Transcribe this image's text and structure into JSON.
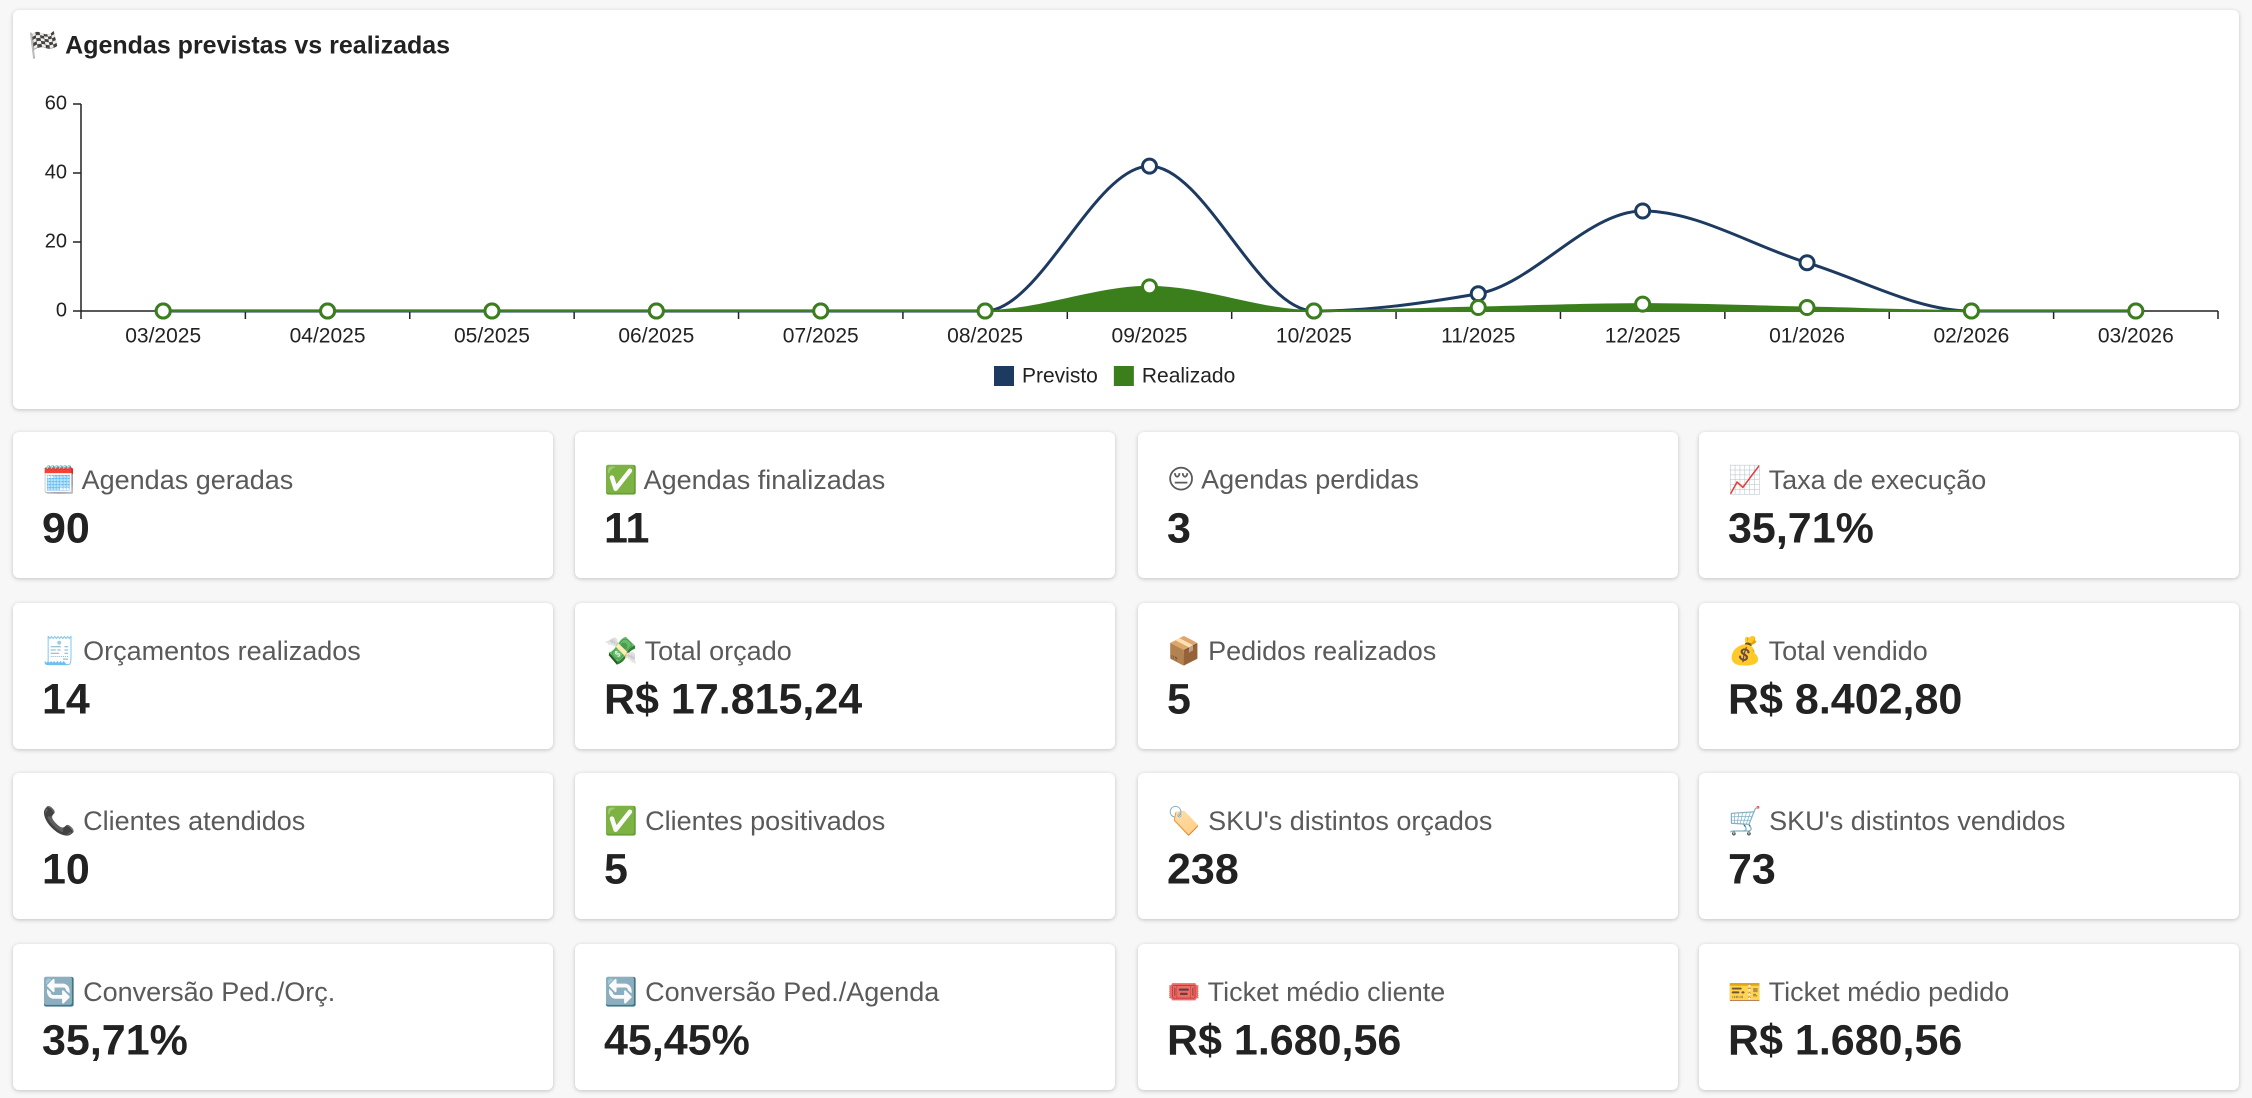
{
  "chart_data": {
    "type": "line",
    "title": "🏁 Agendas previstas vs realizadas",
    "categories": [
      "03/2025",
      "04/2025",
      "05/2025",
      "06/2025",
      "07/2025",
      "08/2025",
      "09/2025",
      "10/2025",
      "11/2025",
      "12/2025",
      "01/2026",
      "02/2026",
      "03/2026"
    ],
    "series": [
      {
        "name": "Previsto",
        "color": "#1d3a60",
        "values": [
          0,
          0,
          0,
          0,
          0,
          0,
          42,
          0,
          5,
          29,
          14,
          0,
          0
        ]
      },
      {
        "name": "Realizado",
        "color": "#3b7f1d",
        "values": [
          0,
          0,
          0,
          0,
          0,
          0,
          7,
          0,
          1,
          2,
          1,
          0,
          0
        ]
      }
    ],
    "ylim": [
      0,
      60
    ],
    "yticks": [
      0,
      20,
      40,
      60
    ]
  },
  "cards": [
    {
      "label": "🗓️ Agendas geradas",
      "value": "90"
    },
    {
      "label": "✅ Agendas finalizadas",
      "value": "11"
    },
    {
      "label": "😔 Agendas perdidas",
      "value": "3"
    },
    {
      "label": "📈 Taxa de execução",
      "value": "35,71%"
    },
    {
      "label": "🧾 Orçamentos realizados",
      "value": "14"
    },
    {
      "label": "💸 Total orçado",
      "value": "R$ 17.815,24"
    },
    {
      "label": "📦 Pedidos realizados",
      "value": "5"
    },
    {
      "label": "💰 Total vendido",
      "value": "R$ 8.402,80"
    },
    {
      "label": "📞 Clientes atendidos",
      "value": "10"
    },
    {
      "label": "✅ Clientes positivados",
      "value": "5"
    },
    {
      "label": "🏷️ SKU's distintos orçados",
      "value": "238"
    },
    {
      "label": "🛒 SKU's distintos vendidos",
      "value": "73"
    },
    {
      "label": "🔄 Conversão Ped./Orç.",
      "value": "35,71%"
    },
    {
      "label": "🔄 Conversão Ped./Agenda",
      "value": "45,45%"
    },
    {
      "label": "🎟️ Ticket médio cliente",
      "value": "R$ 1.680,56"
    },
    {
      "label": "🎫 Ticket médio pedido",
      "value": "R$ 1.680,56"
    }
  ]
}
